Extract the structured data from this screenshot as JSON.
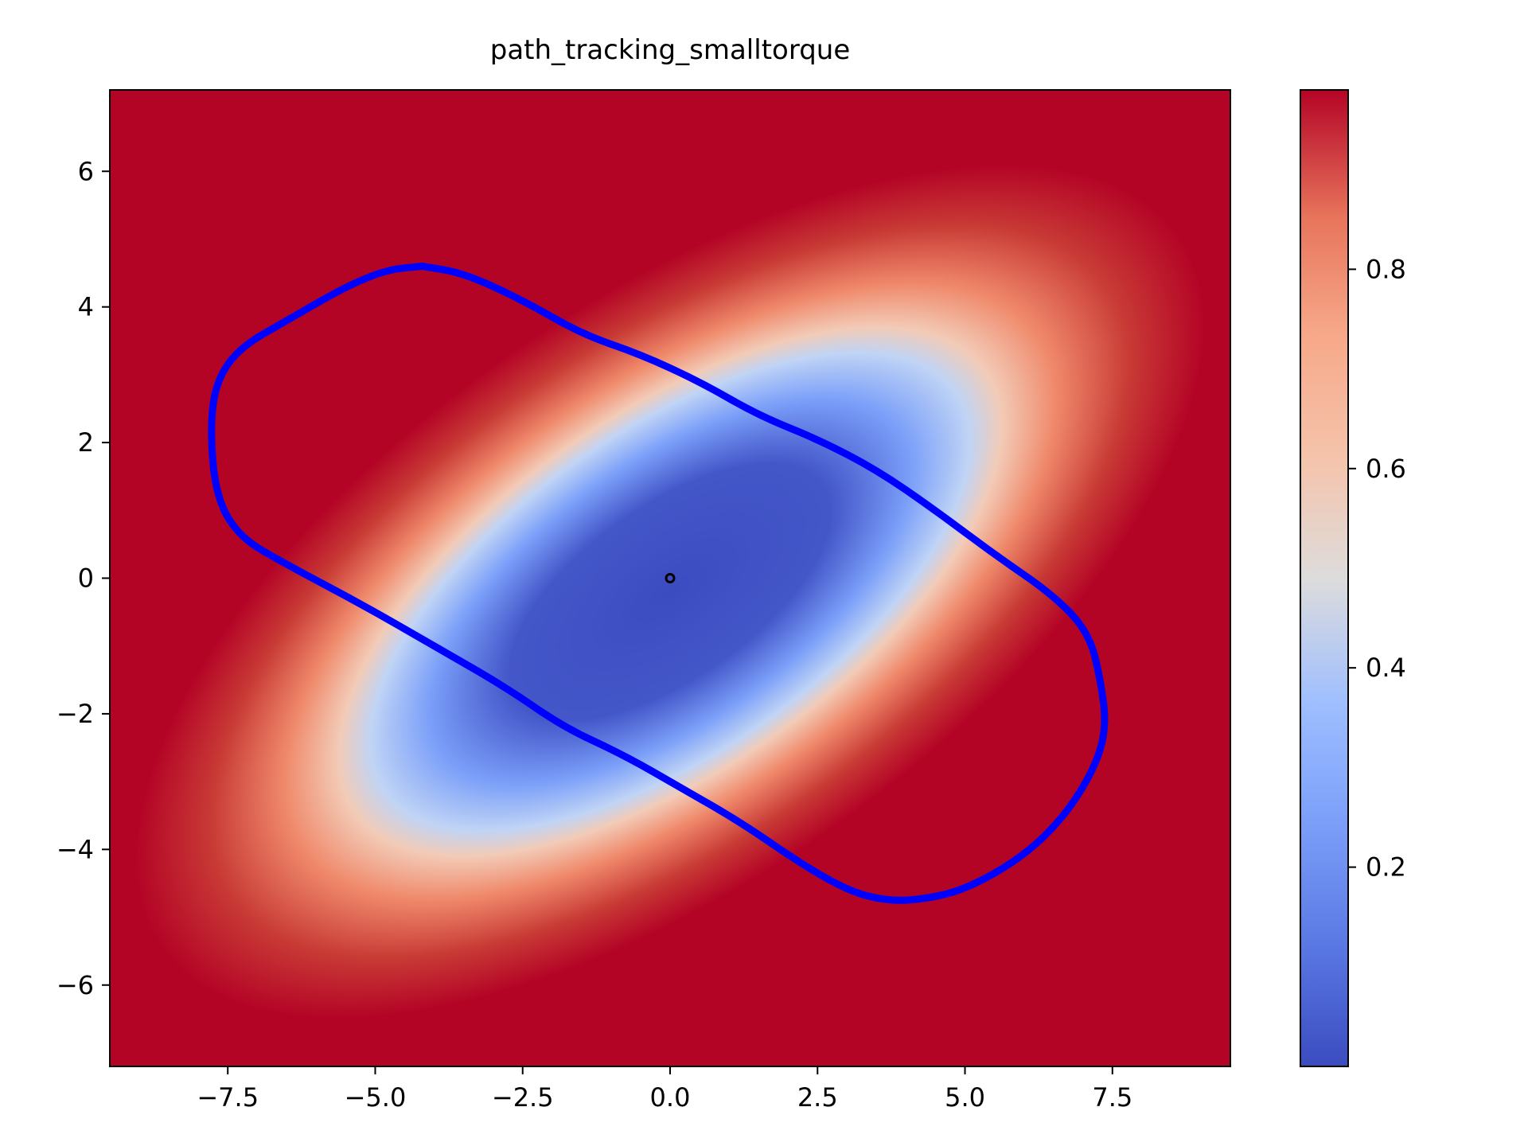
{
  "chart_data": {
    "type": "heatmap",
    "title": "path_tracking_smalltorque",
    "xlabel": "",
    "ylabel": "",
    "xlim": [
      -9.5,
      9.5
    ],
    "ylim": [
      -7.2,
      7.2
    ],
    "xticks": [
      -7.5,
      -5.0,
      -2.5,
      0.0,
      2.5,
      5.0,
      7.5
    ],
    "xtick_labels": [
      "−7.5",
      "−5.0",
      "−2.5",
      "0.0",
      "2.5",
      "5.0",
      "7.5"
    ],
    "yticks": [
      6,
      4,
      2,
      0,
      -2,
      -4,
      -6
    ],
    "ytick_labels": [
      "6",
      "4",
      "2",
      "0",
      "−2",
      "−4",
      "−6"
    ],
    "colormap": "coolwarm",
    "colorbar": {
      "range": [
        0.0,
        0.98
      ],
      "ticks": [
        0.2,
        0.4,
        0.6,
        0.8
      ],
      "tick_labels": [
        "0.2",
        "0.4",
        "0.6",
        "0.8"
      ]
    },
    "field": {
      "description_of_values": "value grows from center outward",
      "center": [
        0.0,
        -0.2
      ],
      "angle_deg": -35,
      "min_value": 0.0,
      "max_value": 0.98
    },
    "boundary_contour": {
      "color": "#0000ff",
      "points": [
        [
          -4.2,
          4.6
        ],
        [
          -3.5,
          4.5
        ],
        [
          -2.5,
          4.1
        ],
        [
          -1.5,
          3.6
        ],
        [
          -0.5,
          3.3
        ],
        [
          0.5,
          2.9
        ],
        [
          1.5,
          2.4
        ],
        [
          2.5,
          2.05
        ],
        [
          3.5,
          1.6
        ],
        [
          4.5,
          1.0
        ],
        [
          5.5,
          0.35
        ],
        [
          6.5,
          -0.25
        ],
        [
          7.1,
          -0.8
        ],
        [
          7.3,
          -1.5
        ],
        [
          7.4,
          -2.2
        ],
        [
          7.2,
          -2.8
        ],
        [
          6.7,
          -3.5
        ],
        [
          6.0,
          -4.1
        ],
        [
          5.0,
          -4.6
        ],
        [
          4.2,
          -4.75
        ],
        [
          3.6,
          -4.75
        ],
        [
          3.0,
          -4.6
        ],
        [
          2.2,
          -4.2
        ],
        [
          1.2,
          -3.6
        ],
        [
          0.2,
          -3.1
        ],
        [
          -0.8,
          -2.6
        ],
        [
          -1.8,
          -2.2
        ],
        [
          -2.8,
          -1.6
        ],
        [
          -4.0,
          -1.0
        ],
        [
          -5.2,
          -0.4
        ],
        [
          -6.5,
          0.2
        ],
        [
          -7.3,
          0.6
        ],
        [
          -7.7,
          1.2
        ],
        [
          -7.8,
          2.2
        ],
        [
          -7.7,
          2.9
        ],
        [
          -7.3,
          3.4
        ],
        [
          -6.5,
          3.8
        ],
        [
          -5.5,
          4.3
        ],
        [
          -4.8,
          4.55
        ],
        [
          -4.2,
          4.6
        ]
      ]
    },
    "center_marker": {
      "x": 0.0,
      "y": 0.0,
      "color": "#000000"
    }
  }
}
